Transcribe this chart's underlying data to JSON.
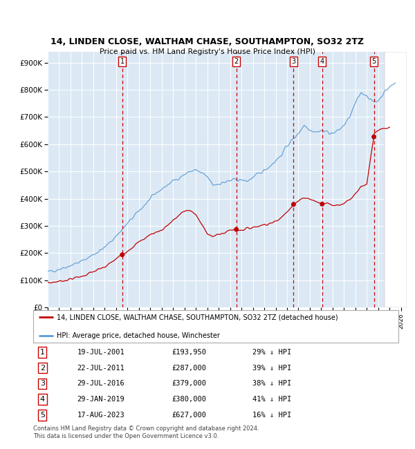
{
  "title1": "14, LINDEN CLOSE, WALTHAM CHASE, SOUTHAMPTON, SO32 2TZ",
  "title2": "Price paid vs. HM Land Registry's House Price Index (HPI)",
  "ylim": [
    0,
    940000
  ],
  "yticks": [
    0,
    100000,
    200000,
    300000,
    400000,
    500000,
    600000,
    700000,
    800000,
    900000
  ],
  "ytick_labels": [
    "£0",
    "£100K",
    "£200K",
    "£300K",
    "£400K",
    "£500K",
    "£600K",
    "£700K",
    "£800K",
    "£900K"
  ],
  "background_color": "#dce9f5",
  "grid_color": "#ffffff",
  "hpi_line_color": "#5b9bd5",
  "sale_line_color": "#c00000",
  "vline_color": "#cc0000",
  "xmin": 1995.0,
  "xmax": 2026.5,
  "hatch_start": 2024.58,
  "sale_events": [
    {
      "label": 1,
      "date_x": 2001.54,
      "price": 193950
    },
    {
      "label": 2,
      "date_x": 2011.55,
      "price": 287000
    },
    {
      "label": 3,
      "date_x": 2016.57,
      "price": 379000
    },
    {
      "label": 4,
      "date_x": 2019.08,
      "price": 380000
    },
    {
      "label": 5,
      "date_x": 2023.62,
      "price": 627000
    }
  ],
  "table_data": [
    {
      "num": 1,
      "date": "19-JUL-2001",
      "price": "£193,950",
      "hpi": "29% ↓ HPI"
    },
    {
      "num": 2,
      "date": "22-JUL-2011",
      "price": "£287,000",
      "hpi": "39% ↓ HPI"
    },
    {
      "num": 3,
      "date": "29-JUL-2016",
      "price": "£379,000",
      "hpi": "38% ↓ HPI"
    },
    {
      "num": 4,
      "date": "29-JAN-2019",
      "price": "£380,000",
      "hpi": "41% ↓ HPI"
    },
    {
      "num": 5,
      "date": "17-AUG-2023",
      "price": "£627,000",
      "hpi": "16% ↓ HPI"
    }
  ],
  "legend_entries": [
    {
      "label": "14, LINDEN CLOSE, WALTHAM CHASE, SOUTHAMPTON, SO32 2TZ (detached house)",
      "color": "#c00000"
    },
    {
      "label": "HPI: Average price, detached house, Winchester",
      "color": "#5b9bd5"
    }
  ],
  "footer": "Contains HM Land Registry data © Crown copyright and database right 2024.\nThis data is licensed under the Open Government Licence v3.0."
}
